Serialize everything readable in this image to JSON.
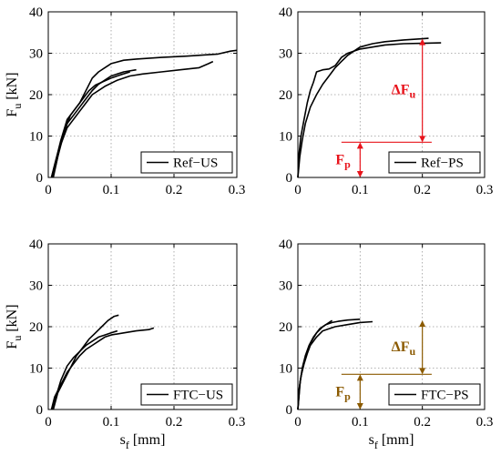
{
  "chart_data": [
    {
      "type": "line",
      "xlabel": "",
      "ylabel": "F_u [kN]",
      "xlim": [
        0,
        0.3
      ],
      "ylim": [
        0,
        40
      ],
      "x_ticks": [
        "0",
        "0.1",
        "0.2",
        "0.3"
      ],
      "y_ticks": [
        "0",
        "10",
        "20",
        "30",
        "40"
      ],
      "grid": true,
      "legend": {
        "label": "Ref−US",
        "placement": "bottom-right"
      },
      "series": [
        {
          "x": [
            0.005,
            0.01,
            0.015,
            0.02,
            0.03,
            0.04,
            0.05,
            0.06,
            0.07,
            0.08,
            0.09,
            0.1,
            0.12,
            0.14,
            0.18,
            0.22,
            0.25,
            0.27,
            0.29,
            0.3
          ],
          "y": [
            0,
            3,
            6,
            9,
            14,
            16,
            18,
            21,
            24,
            25.5,
            26.5,
            27.5,
            28.3,
            28.6,
            29,
            29.3,
            29.6,
            29.8,
            30.5,
            30.7
          ]
        },
        {
          "x": [
            0.005,
            0.012,
            0.02,
            0.03,
            0.04,
            0.05,
            0.06,
            0.07,
            0.09,
            0.11,
            0.13,
            0.15,
            0.18,
            0.21,
            0.24,
            0.255,
            0.262
          ],
          "y": [
            0,
            4,
            8,
            12,
            14,
            16,
            18,
            20,
            22,
            23.5,
            24.5,
            25,
            25.5,
            26,
            26.5,
            27.5,
            28
          ]
        },
        {
          "x": [
            0.008,
            0.015,
            0.022,
            0.03,
            0.04,
            0.05,
            0.06,
            0.07,
            0.08,
            0.09,
            0.1,
            0.12,
            0.14
          ],
          "y": [
            0,
            5,
            9,
            13,
            15,
            17,
            19,
            21,
            22.5,
            23.5,
            24.5,
            25.5,
            26
          ]
        },
        {
          "x": [
            0.006,
            0.012,
            0.018,
            0.025,
            0.035,
            0.045,
            0.055,
            0.065,
            0.075,
            0.085,
            0.1,
            0.115,
            0.13
          ],
          "y": [
            0,
            3,
            7,
            11,
            15,
            17,
            19,
            21,
            22.3,
            23,
            24,
            24.8,
            25.5
          ]
        }
      ]
    },
    {
      "type": "line",
      "xlabel": "",
      "ylabel": "",
      "xlim": [
        0,
        0.3
      ],
      "ylim": [
        0,
        40
      ],
      "x_ticks": [
        "0",
        "0.1",
        "0.2",
        "0.3"
      ],
      "y_ticks": [
        "0",
        "10",
        "20",
        "30",
        "40"
      ],
      "grid": true,
      "legend": {
        "label": "Ref−PS",
        "placement": "bottom-right"
      },
      "annotations": {
        "delta_label": "ΔF",
        "delta_sub": "u",
        "fp_label": "F",
        "fp_sub": "p",
        "fp_value": 8.5,
        "fu_value": 33.5,
        "color": "#e8141c"
      },
      "series": [
        {
          "x": [
            0,
            0.002,
            0.005,
            0.01,
            0.015,
            0.02,
            0.025,
            0.03,
            0.04,
            0.05,
            0.06,
            0.07,
            0.08,
            0.1,
            0.12,
            0.14,
            0.17,
            0.2,
            0.23
          ],
          "y": [
            0,
            6,
            10,
            14,
            18,
            21,
            23,
            25.5,
            26,
            26.2,
            27,
            29,
            30,
            31,
            31.5,
            32,
            32.3,
            32.4,
            32.5
          ]
        },
        {
          "x": [
            0,
            0.003,
            0.007,
            0.012,
            0.02,
            0.03,
            0.04,
            0.05,
            0.06,
            0.07,
            0.08,
            0.09,
            0.1,
            0.12,
            0.14,
            0.17,
            0.2,
            0.21
          ],
          "y": [
            0,
            5,
            9,
            13,
            17,
            20,
            22.5,
            24.5,
            26.5,
            28,
            29.5,
            30.5,
            31.5,
            32.3,
            32.8,
            33.2,
            33.5,
            33.6
          ]
        }
      ]
    },
    {
      "type": "line",
      "xlabel": "s_f [mm]",
      "ylabel": "F_u [kN]",
      "xlim": [
        0,
        0.3
      ],
      "ylim": [
        0,
        40
      ],
      "x_ticks": [
        "0",
        "0.1",
        "0.2",
        "0.3"
      ],
      "y_ticks": [
        "0",
        "10",
        "20",
        "30",
        "40"
      ],
      "grid": true,
      "legend": {
        "label": "FTC−US",
        "placement": "bottom-right"
      },
      "series": [
        {
          "x": [
            0.005,
            0.01,
            0.02,
            0.03,
            0.04,
            0.05,
            0.06,
            0.07,
            0.08,
            0.09,
            0.1,
            0.12,
            0.14,
            0.16,
            0.168
          ],
          "y": [
            0,
            3,
            6,
            9,
            11,
            13,
            14.5,
            15.5,
            16.5,
            17.5,
            18,
            18.5,
            19,
            19.3,
            19.7
          ]
        },
        {
          "x": [
            0.008,
            0.015,
            0.025,
            0.035,
            0.045,
            0.055,
            0.065,
            0.075,
            0.085,
            0.095,
            0.105,
            0.112
          ],
          "y": [
            0,
            4,
            7,
            10,
            13,
            15,
            17,
            18.5,
            20,
            21.5,
            22.5,
            22.8
          ]
        },
        {
          "x": [
            0.006,
            0.012,
            0.02,
            0.03,
            0.04,
            0.05,
            0.06,
            0.07,
            0.08,
            0.09,
            0.1,
            0.11
          ],
          "y": [
            0,
            3,
            7,
            10.5,
            12.5,
            14,
            15.5,
            16.5,
            17.5,
            18,
            18.5,
            19
          ]
        }
      ]
    },
    {
      "type": "line",
      "xlabel": "s_f [mm]",
      "ylabel": "",
      "xlim": [
        0,
        0.3
      ],
      "ylim": [
        0,
        40
      ],
      "x_ticks": [
        "0",
        "0.1",
        "0.2",
        "0.3"
      ],
      "y_ticks": [
        "0",
        "10",
        "20",
        "30",
        "40"
      ],
      "grid": true,
      "legend": {
        "label": "FTC−PS",
        "placement": "bottom-right"
      },
      "annotations": {
        "delta_label": "ΔF",
        "delta_sub": "u",
        "fp_label": "F",
        "fp_sub": "p",
        "fp_value": 8.5,
        "fu_value": 21.5,
        "color": "#8b5a00"
      },
      "series": [
        {
          "x": [
            0,
            0.002,
            0.005,
            0.01,
            0.015,
            0.02,
            0.03,
            0.04,
            0.05,
            0.06,
            0.08,
            0.1,
            0.12
          ],
          "y": [
            0,
            5,
            8,
            11,
            13.5,
            15.5,
            17.5,
            19,
            19.5,
            20,
            20.5,
            21,
            21.2
          ]
        },
        {
          "x": [
            0,
            0.003,
            0.007,
            0.012,
            0.018,
            0.025,
            0.035,
            0.045,
            0.055,
            0.065,
            0.08,
            0.1
          ],
          "y": [
            0,
            6,
            10,
            13,
            15.5,
            17.5,
            19.5,
            20.5,
            21,
            21.3,
            21.6,
            21.8
          ]
        },
        {
          "x": [
            0,
            0.004,
            0.009,
            0.015,
            0.022,
            0.03,
            0.04,
            0.05,
            0.055
          ],
          "y": [
            0,
            7,
            11,
            14,
            16.5,
            18.5,
            20,
            21,
            21.5
          ]
        }
      ]
    }
  ]
}
